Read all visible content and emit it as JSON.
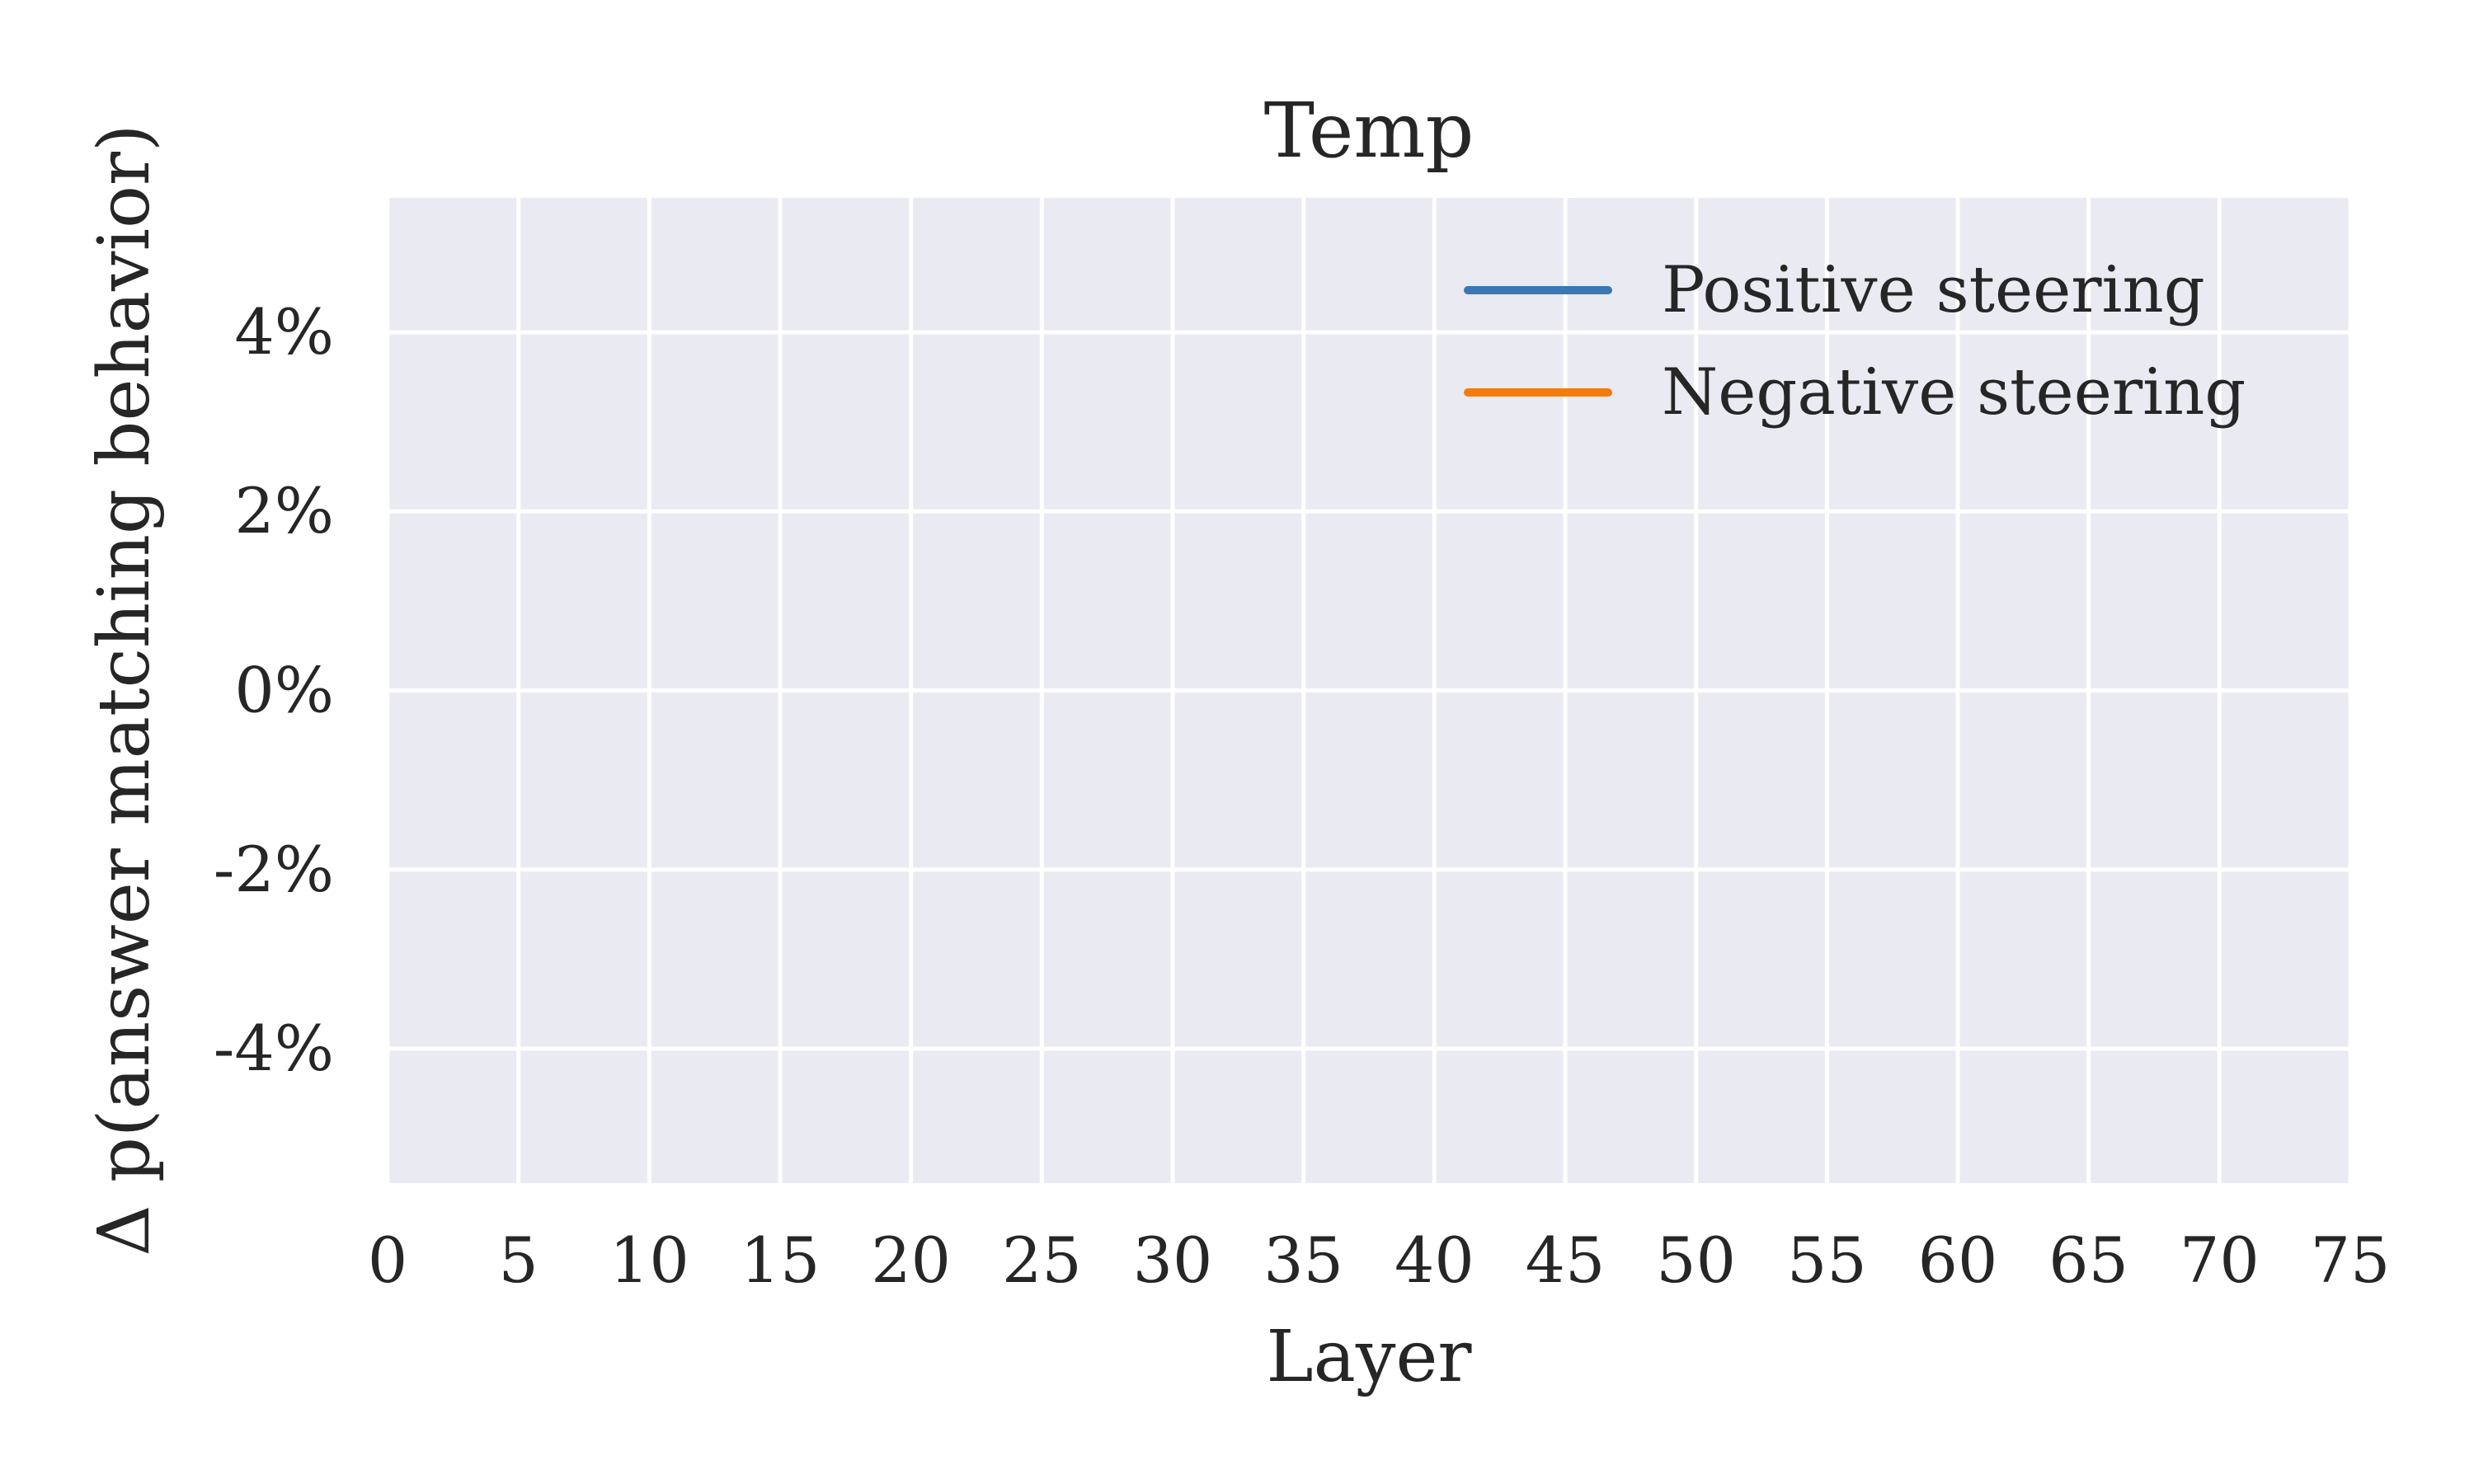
{
  "chart_data": {
    "type": "line",
    "title": "Temp",
    "xlabel": "Layer",
    "ylabel": "Δ p(answer matching behavior)",
    "xlim": [
      0,
      75
    ],
    "ylim": [
      -5.5,
      5.5
    ],
    "x_ticks": [
      0,
      5,
      10,
      15,
      20,
      25,
      30,
      35,
      40,
      45,
      50,
      55,
      60,
      65,
      70,
      75
    ],
    "x_tick_labels": [
      "0",
      "5",
      "10",
      "15",
      "20",
      "25",
      "30",
      "35",
      "40",
      "45",
      "50",
      "55",
      "60",
      "65",
      "70",
      "75"
    ],
    "y_ticks": [
      4,
      2,
      0,
      -2,
      -4
    ],
    "y_tick_labels": [
      "4%",
      "2%",
      "0%",
      "-2%",
      "-4%"
    ],
    "grid": true,
    "legend_position": "top-right",
    "background_color": "#eaeaf2",
    "grid_color": "#ffffff",
    "series": [
      {
        "name": "Positive steering",
        "color": "#3a78b5",
        "x": [],
        "y": []
      },
      {
        "name": "Negative steering",
        "color": "#f57c0a",
        "x": [],
        "y": []
      }
    ]
  }
}
